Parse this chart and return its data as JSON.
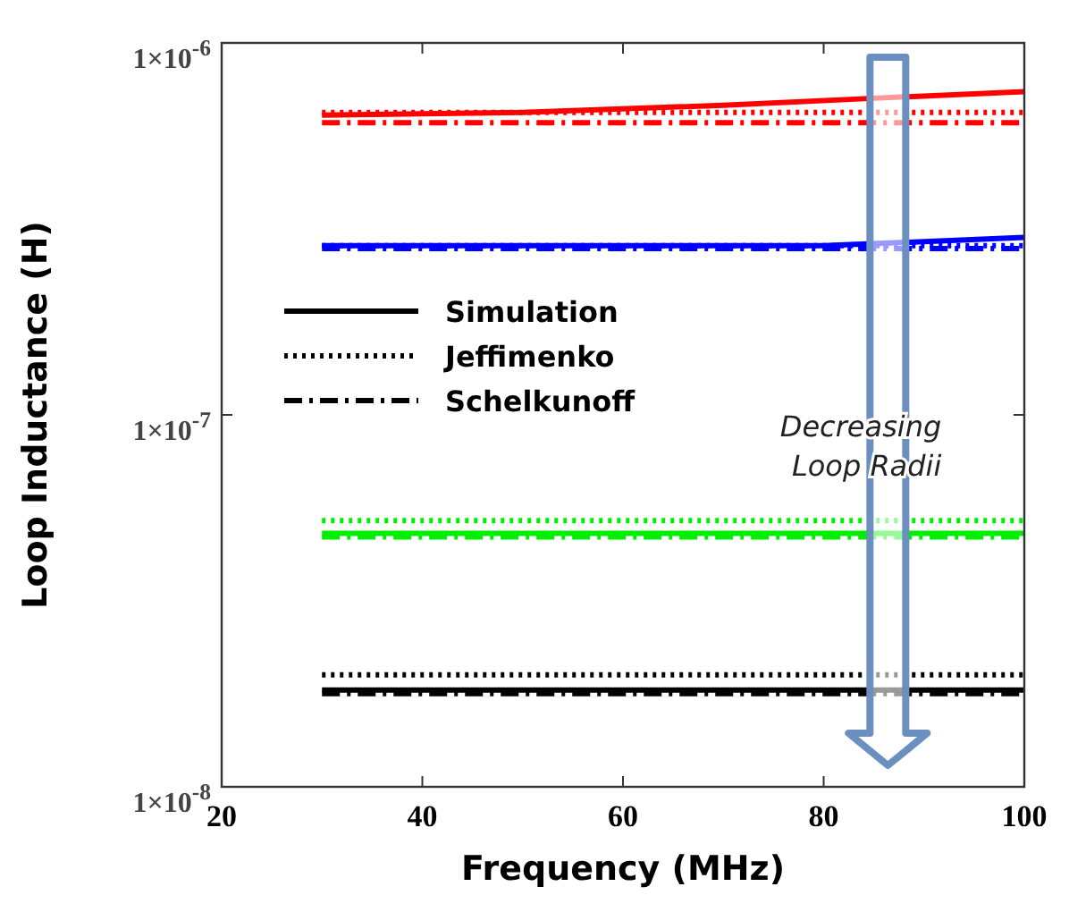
{
  "chart_data": {
    "type": "line",
    "xlabel": "Frequency (MHz)",
    "ylabel": "Loop Inductance (H)",
    "log": true,
    "xlim": [
      20,
      100
    ],
    "xticks": [
      20,
      40,
      60,
      80,
      100
    ],
    "ylim": [
      1e-08,
      1e-06
    ],
    "yticks": [
      {
        "value": 1e-08,
        "label": "1×10$^{-8}$"
      },
      {
        "value": 1e-07,
        "label": "1×10$^{-7}$"
      },
      {
        "value": 1e-06,
        "label": "1×10$^{-6}$"
      }
    ],
    "legend": "left",
    "annotations": [
      "Decreasing Loop Radii"
    ],
    "series": [
      {
        "color": "#ff0000",
        "line_style": "solid",
        "x": [
          30,
          50,
          70,
          85,
          100
        ],
        "values": [
          6.4e-07,
          6.5e-07,
          6.8e-07,
          7.1e-07,
          7.4e-07
        ]
      },
      {
        "color": "#ff0000",
        "line_style": "dotted",
        "x": [
          30,
          100
        ],
        "values": [
          6.5e-07,
          6.5e-07
        ]
      },
      {
        "color": "#ff0000",
        "line_style": "dashdot",
        "x": [
          30,
          100
        ],
        "values": [
          6.1e-07,
          6.1e-07
        ]
      },
      {
        "color": "#0000ff",
        "line_style": "solid",
        "x": [
          30,
          80,
          100
        ],
        "values": [
          2.85e-07,
          2.85e-07,
          3e-07
        ]
      },
      {
        "color": "#0000ff",
        "line_style": "dotted",
        "x": [
          30,
          100
        ],
        "values": [
          2.85e-07,
          2.85e-07
        ]
      },
      {
        "color": "#0000ff",
        "line_style": "dashdot",
        "x": [
          30,
          100
        ],
        "values": [
          2.8e-07,
          2.8e-07
        ]
      },
      {
        "color": "#00ee00",
        "line_style": "solid",
        "x": [
          30,
          100
        ],
        "values": [
          4.8e-08,
          4.8e-08
        ]
      },
      {
        "color": "#00ee00",
        "line_style": "dotted",
        "x": [
          30,
          100
        ],
        "values": [
          5.2e-08,
          5.2e-08
        ]
      },
      {
        "color": "#00ee00",
        "line_style": "dashdot",
        "x": [
          30,
          100
        ],
        "values": [
          4.7e-08,
          4.7e-08
        ]
      },
      {
        "name": "Simulation",
        "color": "#000000",
        "line_style": "solid",
        "x": [
          30,
          100
        ],
        "values": [
          1.82e-08,
          1.82e-08
        ]
      },
      {
        "name": "Jeffimenko",
        "color": "#000000",
        "line_style": "dotted",
        "x": [
          30,
          100
        ],
        "values": [
          2e-08,
          2e-08
        ]
      },
      {
        "name": "Schelkunoff",
        "color": "#000000",
        "line_style": "dashdot",
        "x": [
          30,
          100
        ],
        "values": [
          1.78e-08,
          1.78e-08
        ]
      }
    ]
  }
}
